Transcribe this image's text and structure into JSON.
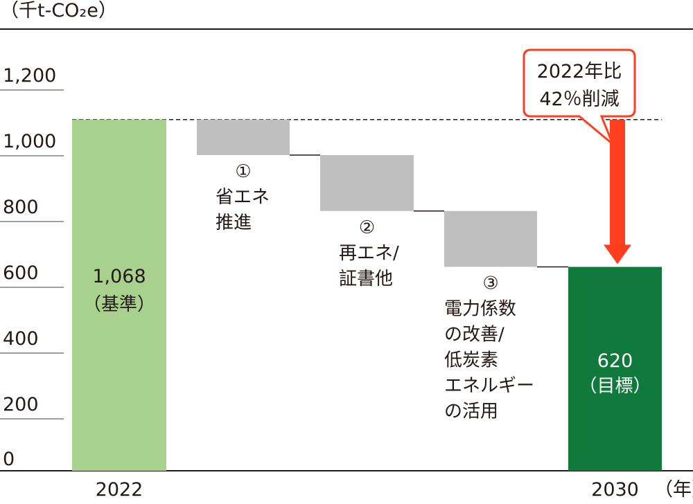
{
  "chart_data": {
    "type": "waterfall",
    "unit_label": "（千t-CO₂e）",
    "year_unit": "（年）",
    "ylim": [
      0,
      1200
    ],
    "yticks": [
      "0",
      "200",
      "400",
      "600",
      "800",
      "1,000",
      "1,200"
    ],
    "ytick_values": [
      0,
      200,
      400,
      600,
      800,
      1000,
      1200
    ],
    "base": {
      "category": "2022",
      "value": 1068,
      "value_text": "1,068",
      "note": "（基準）",
      "color": "#a9d18e"
    },
    "steps": [
      {
        "number": "①",
        "lines": [
          "省エネ",
          "推進"
        ],
        "from": 1068,
        "to": 960,
        "color": "#bfbfbf"
      },
      {
        "number": "②",
        "lines": [
          "再エネ/",
          "証書他"
        ],
        "from": 960,
        "to": 790,
        "color": "#bfbfbf"
      },
      {
        "number": "③",
        "lines": [
          "電力係数",
          "の改善/",
          "低炭素",
          "エネルギー",
          "の活用"
        ],
        "from": 790,
        "to": 620,
        "color": "#bfbfbf"
      }
    ],
    "target": {
      "category": "2030",
      "value": 620,
      "value_text": "620",
      "note": "（目標）",
      "color": "#0f7a3c"
    },
    "reference_line": 1068,
    "callout": {
      "lines": [
        "2022年比",
        "42％削減"
      ],
      "color": "#ff3d1f"
    }
  }
}
